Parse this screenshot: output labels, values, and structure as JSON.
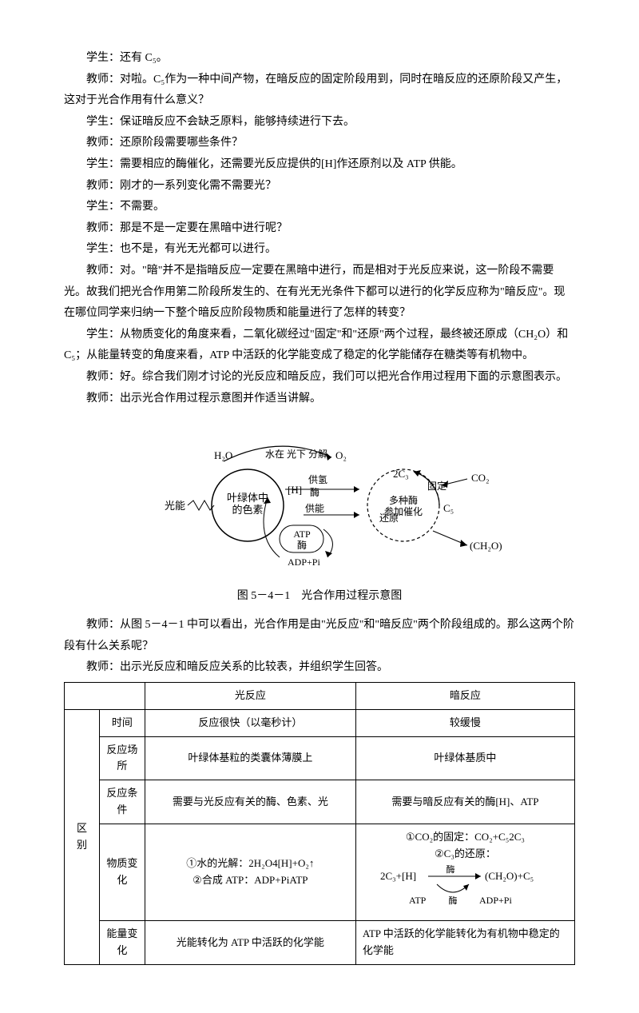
{
  "dialogue": [
    "学生：还有 C₅。",
    "教师：对啦。C₅作为一种中间产物，在暗反应的固定阶段用到，同时在暗反应的还原阶段又产生，这对于光合作用有什么意义？",
    "学生：保证暗反应不会缺乏原料，能够持续进行下去。",
    "教师：还原阶段需要哪些条件？",
    "学生：需要相应的酶催化，还需要光反应提供的[H]作还原剂以及 ATP 供能。",
    "教师：刚才的一系列变化需不需要光？",
    "学生：不需要。",
    "教师：那是不是一定要在黑暗中进行呢？",
    "学生：也不是，有光无光都可以进行。",
    "教师：对。\"暗\"并不是指暗反应一定要在黑暗中进行，而是相对于光反应来说，这一阶段不需要光。故我们把光合作用第二阶段所发生的、在有光无光条件下都可以进行的化学反应称为\"暗反应\"。现在哪位同学来归纳一下整个暗反应阶段物质和能量进行了怎样的转变？",
    "学生：从物质变化的角度来看，二氧化碳经过\"固定\"和\"还原\"两个过程，最终被还原成（CH₂O）和 C₅；从能量转变的角度来看，ATP 中活跃的化学能变成了稳定的化学能储存在糖类等有机物中。",
    "教师：好。综合我们刚才讨论的光反应和暗反应，我们可以把光合作用过程用下面的示意图表示。",
    "教师：出示光合作用过程示意图并作适当讲解。"
  ],
  "diagram": {
    "caption": "图 5－4－1　光合作用过程示意图",
    "labels": {
      "h2o": "H₂O",
      "o2": "O₂",
      "water_split": "水在 光下 分解",
      "light": "光能",
      "pigment": "叶绿体中的色素",
      "supply_h": "供氢",
      "enzyme1": "酶",
      "supply_energy": "供能",
      "atp": "ATP",
      "enzyme2": "酶",
      "adp": "ADP+Pi",
      "c3": "2C₃",
      "co2": "CO₂",
      "fix": "固定",
      "multi_enzyme": "多种酶参加催化",
      "reduce": "还原",
      "c5": "C₅",
      "ch2o": "(CH₂O)"
    }
  },
  "post_diagram": [
    "教师：从图 5－4－1 中可以看出，光合作用是由\"光反应\"和\"暗反应\"两个阶段组成的。那么这两个阶段有什么关系呢？",
    "教师：出示光反应和暗反应关系的比较表，并组织学生回答。"
  ],
  "table": {
    "headers": {
      "col1": "",
      "col2": "光反应",
      "col3": "暗反应"
    },
    "section_label": "区别",
    "rows": [
      {
        "label": "时间",
        "light": "反应很快（以毫秒计）",
        "dark": "较缓慢"
      },
      {
        "label": "反应场所",
        "light": "叶绿体基粒的类囊体薄膜上",
        "dark": "叶绿体基质中"
      },
      {
        "label": "反应条件",
        "light": "需要与光反应有关的酶、色素、光",
        "dark": "需要与暗反应有关的酶[H]、ATP"
      },
      {
        "label": "物质变化",
        "light": "①水的光解：2H₂O4[H]+O₂↑\n②合成 ATP：ADP+PiATP",
        "dark_heading": "①CO₂的固定：CO₂+C₅2C₃\n②C₃的还原："
      },
      {
        "label": "能量变化",
        "light": "光能转化为 ATP 中活跃的化学能",
        "dark": "ATP 中活跃的化学能转化为有机物中稳定的化学能"
      }
    ],
    "dark_chem": {
      "left": "2C₃+[H]",
      "top": "酶",
      "right": "(CH₂O)+C₅",
      "bottom_left": "ATP",
      "bottom_mid": "酶",
      "bottom_right": "ADP+Pi"
    }
  }
}
